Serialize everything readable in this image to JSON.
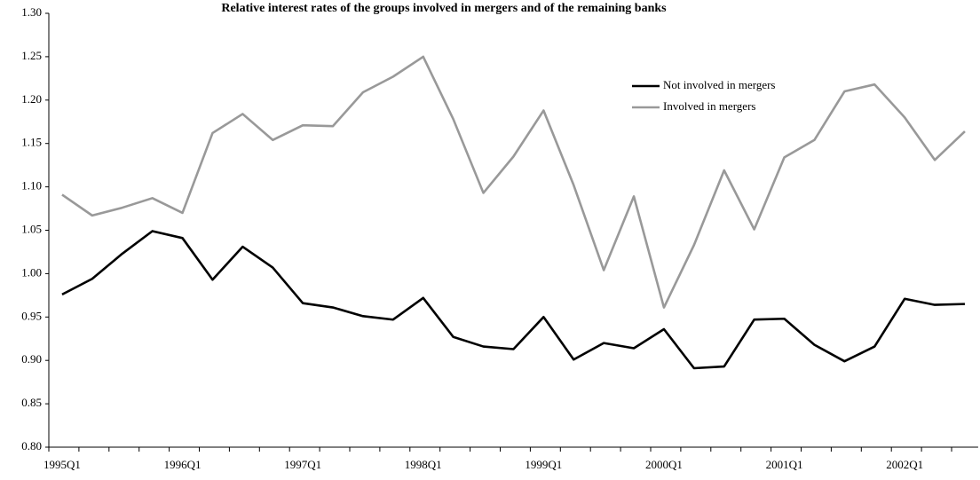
{
  "chart_data": {
    "type": "line",
    "title": "Relative interest rates of the groups involved in mergers and of the remaining banks",
    "categories": [
      "1995Q1",
      null,
      null,
      null,
      "1996Q1",
      null,
      null,
      null,
      "1997Q1",
      null,
      null,
      null,
      "1998Q1",
      null,
      null,
      null,
      "1999Q1",
      null,
      null,
      null,
      "2000Q1",
      null,
      null,
      null,
      "2001Q1",
      null,
      null,
      null,
      "2002Q1",
      null,
      null
    ],
    "series": [
      {
        "name": "Not involved in mergers",
        "color": "#000000",
        "values": [
          0.976,
          0.994,
          1.023,
          1.049,
          1.041,
          0.993,
          1.031,
          1.007,
          0.966,
          0.961,
          0.951,
          0.947,
          0.972,
          0.927,
          0.916,
          0.913,
          0.95,
          0.901,
          0.92,
          0.914,
          0.936,
          0.891,
          0.893,
          0.947,
          0.948,
          0.918,
          0.899,
          0.916,
          0.971,
          0.964,
          0.965
        ]
      },
      {
        "name": "Involved in mergers",
        "color": "#999999",
        "values": [
          1.091,
          1.067,
          1.076,
          1.087,
          1.07,
          1.162,
          1.184,
          1.154,
          1.171,
          1.17,
          1.209,
          1.227,
          1.25,
          1.178,
          1.093,
          1.135,
          1.188,
          1.102,
          1.004,
          1.089,
          0.961,
          1.033,
          1.119,
          1.051,
          1.134,
          1.154,
          1.21,
          1.218,
          1.18,
          1.131,
          1.164
        ]
      }
    ],
    "ylim": [
      0.8,
      1.3
    ],
    "yticks": [
      {
        "value": 0.8,
        "label": "0.80"
      },
      {
        "value": 0.85,
        "label": "0.85"
      },
      {
        "value": 0.9,
        "label": "0.90"
      },
      {
        "value": 0.95,
        "label": "0.95"
      },
      {
        "value": 1.0,
        "label": "1.00"
      },
      {
        "value": 1.05,
        "label": "1.05"
      },
      {
        "value": 1.1,
        "label": "1.10"
      },
      {
        "value": 1.15,
        "label": "1.15"
      },
      {
        "value": 1.2,
        "label": "1.20"
      },
      {
        "value": 1.25,
        "label": "1.25"
      },
      {
        "value": 1.3,
        "label": "1.30"
      }
    ],
    "grid": false,
    "legend": "upper right"
  }
}
